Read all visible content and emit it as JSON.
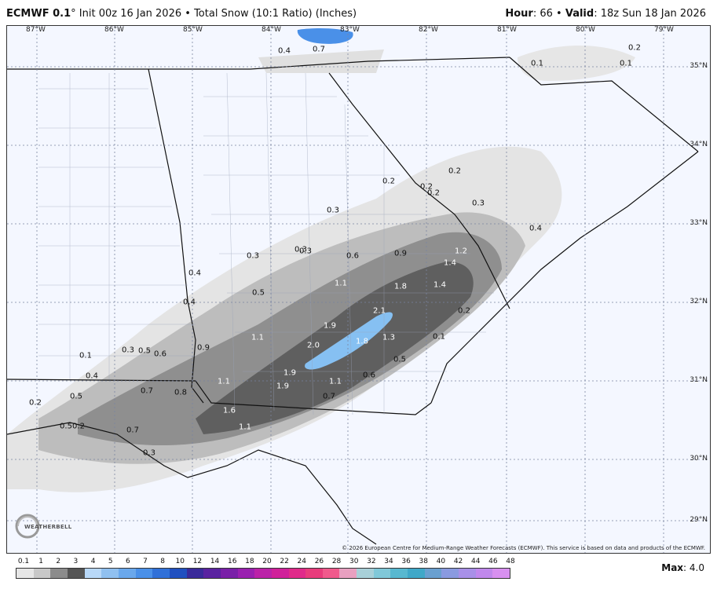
{
  "header": {
    "model": "ECMWF 0.1",
    "degree": "°",
    "init": "Init 00z 16 Jan 2026",
    "bullet": "•",
    "product": "Total Snow (10:1 Ratio) (Inches)",
    "hour_label": "Hour",
    "hour_value": ": 66",
    "valid_label": "Valid",
    "valid_value": ": 18z Sun 18 Jan 2026"
  },
  "map": {
    "lon_labels": [
      "87°W",
      "86°W",
      "85°W",
      "84°W",
      "83°W",
      "82°W",
      "81°W",
      "80°W",
      "79°W"
    ],
    "lat_labels": [
      "35°N",
      "34°N",
      "33°N",
      "32°N",
      "31°N",
      "30°N",
      "29°N"
    ],
    "values": [
      {
        "t": "0.4"
      },
      {
        "t": "0.7"
      },
      {
        "t": "0.1"
      },
      {
        "t": "0.2"
      },
      {
        "t": "0.1"
      },
      {
        "t": "0.2"
      },
      {
        "t": "0.2"
      },
      {
        "t": "0.2"
      },
      {
        "t": "0.2"
      },
      {
        "t": "0.3"
      },
      {
        "t": "0.3"
      },
      {
        "t": "0.4"
      },
      {
        "t": "0.3"
      },
      {
        "t": "0.3"
      },
      {
        "t": "0.3"
      },
      {
        "t": "0.6"
      },
      {
        "t": "0.9"
      },
      {
        "t": "1.2"
      },
      {
        "t": "1.4"
      },
      {
        "t": "0.4"
      },
      {
        "t": "0.5"
      },
      {
        "t": "1.1"
      },
      {
        "t": "1.8"
      },
      {
        "t": "1.4"
      },
      {
        "t": "0.4"
      },
      {
        "t": "2.1"
      },
      {
        "t": "0.2"
      },
      {
        "t": "1.9"
      },
      {
        "t": "0.1"
      },
      {
        "t": "0.3"
      },
      {
        "t": "0.5"
      },
      {
        "t": "0.6"
      },
      {
        "t": "0.9"
      },
      {
        "t": "1.1"
      },
      {
        "t": "2.0"
      },
      {
        "t": "1.8"
      },
      {
        "t": "1.3"
      },
      {
        "t": "0.1"
      },
      {
        "t": "0.4"
      },
      {
        "t": "0.5"
      },
      {
        "t": "1.9"
      },
      {
        "t": "0.6"
      },
      {
        "t": "1.1"
      },
      {
        "t": "1.9"
      },
      {
        "t": "1.1"
      },
      {
        "t": "0.7"
      },
      {
        "t": "0.8"
      },
      {
        "t": "0.5"
      },
      {
        "t": "0.2"
      },
      {
        "t": "1.6"
      },
      {
        "t": "0.7"
      },
      {
        "t": "1.1"
      },
      {
        "t": "0.7"
      },
      {
        "t": "0.5"
      },
      {
        "t": "0.2"
      },
      {
        "t": "0.3"
      }
    ],
    "copyright": "© 2026 European Centre for Medium-Range Weather Forecasts (ECMWF). This service is based on data and products of the ECMWF.",
    "logo_text": "WEATHERBELL"
  },
  "legend": {
    "labels": [
      "0.1",
      "1",
      "2",
      "3",
      "4",
      "5",
      "6",
      "7",
      "8",
      "10",
      "12",
      "14",
      "16",
      "18",
      "20",
      "22",
      "24",
      "26",
      "28",
      "30",
      "32",
      "34",
      "36",
      "38",
      "40",
      "42",
      "44",
      "46",
      "48"
    ],
    "colors": [
      "#e6e6e6",
      "#c8c8c8",
      "#8c8c8c",
      "#555555",
      "#b8d8f8",
      "#90c0f0",
      "#6aa8ec",
      "#4a90e8",
      "#3070d8",
      "#2050c0",
      "#3a2a9a",
      "#5a22a0",
      "#7a20a8",
      "#9a20b0",
      "#bb22a8",
      "#d0209a",
      "#e02a8a",
      "#e83c7c",
      "#f05a8c",
      "#e8a0c0",
      "#a8d0d8",
      "#80c8d8",
      "#58b8d0",
      "#40a8c8",
      "#6aa0d0",
      "#8a9ae0",
      "#a890e8",
      "#c088ec",
      "#d890f0"
    ],
    "max_label": "Max",
    "max_value": ": 4.0"
  }
}
